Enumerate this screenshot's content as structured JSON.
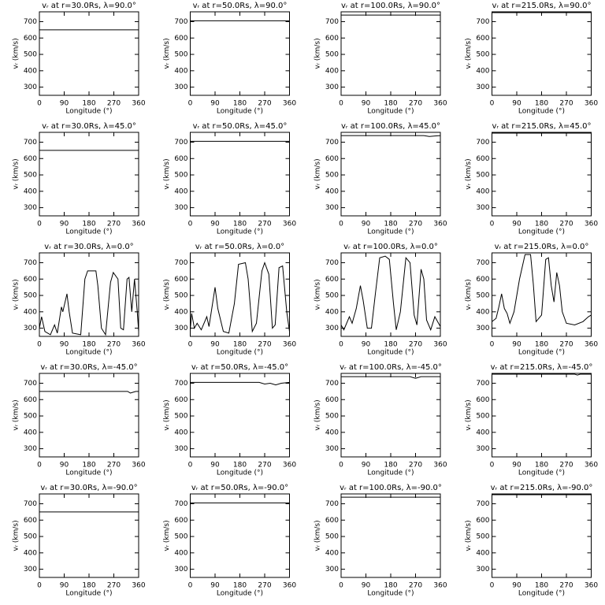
{
  "chart_data": [
    {
      "type": "line",
      "title": "vᵣ at r=30.0Rs, λ=90.0°",
      "xlabel": "Longitude (°)",
      "ylabel": "vᵣ (km/s)",
      "x": [
        0,
        360
      ],
      "values": [
        650,
        650
      ],
      "color": "#000000",
      "xlim": [
        0,
        360
      ],
      "ylim": [
        250,
        760
      ],
      "xticks": [
        0,
        90,
        180,
        270,
        360
      ],
      "yticks": [
        300,
        400,
        500,
        600,
        700
      ]
    },
    {
      "type": "line",
      "title": "vᵣ at r=50.0Rs, λ=90.0°",
      "xlabel": "Longitude (°)",
      "ylabel": "vᵣ (km/s)",
      "x": [
        0,
        360
      ],
      "values": [
        705,
        705
      ],
      "color": "#000000",
      "xlim": [
        0,
        360
      ],
      "ylim": [
        250,
        760
      ],
      "xticks": [
        0,
        90,
        180,
        270,
        360
      ],
      "yticks": [
        300,
        400,
        500,
        600,
        700
      ]
    },
    {
      "type": "line",
      "title": "vᵣ at r=100.0Rs, λ=90.0°",
      "xlabel": "Longitude (°)",
      "ylabel": "vᵣ (km/s)",
      "x": [
        0,
        360
      ],
      "values": [
        740,
        740
      ],
      "color": "#000000",
      "xlim": [
        0,
        360
      ],
      "ylim": [
        250,
        760
      ],
      "xticks": [
        0,
        90,
        180,
        270,
        360
      ],
      "yticks": [
        300,
        400,
        500,
        600,
        700
      ]
    },
    {
      "type": "line",
      "title": "vᵣ at r=215.0Rs, λ=90.0°",
      "xlabel": "Longitude (°)",
      "ylabel": "vᵣ (km/s)",
      "x": [
        0,
        360
      ],
      "values": [
        755,
        755
      ],
      "color": "#000000",
      "xlim": [
        0,
        360
      ],
      "ylim": [
        250,
        760
      ],
      "xticks": [
        0,
        90,
        180,
        270,
        360
      ],
      "yticks": [
        300,
        400,
        500,
        600,
        700
      ]
    },
    {
      "type": "line",
      "title": "vᵣ at r=30.0Rs, λ=45.0°",
      "xlabel": "Longitude (°)",
      "ylabel": "vᵣ (km/s)",
      "x": [
        0,
        360
      ],
      "values": [
        650,
        650
      ],
      "color": "#000000",
      "xlim": [
        0,
        360
      ],
      "ylim": [
        250,
        760
      ],
      "xticks": [
        0,
        90,
        180,
        270,
        360
      ],
      "yticks": [
        300,
        400,
        500,
        600,
        700
      ]
    },
    {
      "type": "line",
      "title": "vᵣ at r=50.0Rs, λ=45.0°",
      "xlabel": "Longitude (°)",
      "ylabel": "vᵣ (km/s)",
      "x": [
        0,
        360
      ],
      "values": [
        705,
        705
      ],
      "color": "#000000",
      "xlim": [
        0,
        360
      ],
      "ylim": [
        250,
        760
      ],
      "xticks": [
        0,
        90,
        180,
        270,
        360
      ],
      "yticks": [
        300,
        400,
        500,
        600,
        700
      ]
    },
    {
      "type": "line",
      "title": "vᵣ at r=100.0Rs, λ=45.0°",
      "xlabel": "Longitude (°)",
      "ylabel": "vᵣ (km/s)",
      "x": [
        0,
        300,
        320,
        340,
        360
      ],
      "values": [
        740,
        740,
        735,
        738,
        740
      ],
      "color": "#000000",
      "xlim": [
        0,
        360
      ],
      "ylim": [
        250,
        760
      ],
      "xticks": [
        0,
        90,
        180,
        270,
        360
      ],
      "yticks": [
        300,
        400,
        500,
        600,
        700
      ]
    },
    {
      "type": "line",
      "title": "vᵣ at r=215.0Rs, λ=45.0°",
      "xlabel": "Longitude (°)",
      "ylabel": "vᵣ (km/s)",
      "x": [
        0,
        360
      ],
      "values": [
        755,
        755
      ],
      "color": "#000000",
      "xlim": [
        0,
        360
      ],
      "ylim": [
        250,
        760
      ],
      "xticks": [
        0,
        90,
        180,
        270,
        360
      ],
      "yticks": [
        300,
        400,
        500,
        600,
        700
      ]
    },
    {
      "type": "line",
      "title": "vᵣ at r=30.0Rs, λ=0.0°",
      "xlabel": "Longitude (°)",
      "ylabel": "vᵣ (km/s)",
      "x": [
        0,
        8,
        20,
        40,
        55,
        65,
        80,
        85,
        100,
        108,
        120,
        150,
        165,
        175,
        205,
        212,
        225,
        240,
        258,
        268,
        285,
        295,
        305,
        318,
        325,
        335,
        345,
        355,
        360
      ],
      "values": [
        300,
        370,
        280,
        260,
        320,
        270,
        430,
        400,
        510,
        400,
        270,
        260,
        600,
        650,
        650,
        560,
        300,
        260,
        580,
        640,
        600,
        300,
        290,
        600,
        610,
        400,
        600,
        400,
        280
      ],
      "color": "#000000",
      "xlim": [
        0,
        360
      ],
      "ylim": [
        250,
        760
      ],
      "xticks": [
        0,
        90,
        180,
        270,
        360
      ],
      "yticks": [
        300,
        400,
        500,
        600,
        700
      ]
    },
    {
      "type": "line",
      "title": "vᵣ at r=50.0Rs, λ=0.0°",
      "xlabel": "Longitude (°)",
      "ylabel": "vᵣ (km/s)",
      "x": [
        0,
        5,
        15,
        25,
        40,
        60,
        68,
        80,
        90,
        100,
        120,
        140,
        160,
        175,
        200,
        210,
        225,
        240,
        260,
        270,
        285,
        298,
        308,
        322,
        335,
        350,
        360
      ],
      "values": [
        290,
        390,
        300,
        330,
        290,
        370,
        310,
        440,
        550,
        420,
        280,
        270,
        450,
        690,
        700,
        600,
        280,
        330,
        650,
        700,
        630,
        300,
        320,
        670,
        680,
        400,
        280
      ],
      "color": "#000000",
      "xlim": [
        0,
        360
      ],
      "ylim": [
        250,
        760
      ],
      "xticks": [
        0,
        90,
        180,
        270,
        360
      ],
      "yticks": [
        300,
        400,
        500,
        600,
        700
      ]
    },
    {
      "type": "line",
      "title": "vᵣ at r=100.0Rs, λ=0.0°",
      "xlabel": "Longitude (°)",
      "ylabel": "vᵣ (km/s)",
      "x": [
        0,
        10,
        30,
        40,
        55,
        70,
        80,
        95,
        110,
        125,
        140,
        160,
        175,
        190,
        200,
        215,
        235,
        250,
        265,
        275,
        290,
        300,
        310,
        325,
        340,
        360
      ],
      "values": [
        320,
        290,
        370,
        330,
        420,
        560,
        470,
        300,
        300,
        520,
        730,
        740,
        720,
        450,
        290,
        400,
        730,
        700,
        380,
        320,
        660,
        600,
        350,
        290,
        370,
        310
      ],
      "color": "#000000",
      "xlim": [
        0,
        360
      ],
      "ylim": [
        250,
        760
      ],
      "xticks": [
        0,
        90,
        180,
        270,
        360
      ],
      "yticks": [
        300,
        400,
        500,
        600,
        700
      ]
    },
    {
      "type": "line",
      "title": "vᵣ at r=215.0Rs, λ=0.0°",
      "xlabel": "Longitude (°)",
      "ylabel": "vᵣ (km/s)",
      "x": [
        0,
        15,
        25,
        35,
        45,
        55,
        65,
        80,
        100,
        120,
        140,
        150,
        160,
        180,
        195,
        205,
        215,
        225,
        235,
        245,
        255,
        270,
        300,
        330,
        350,
        360
      ],
      "values": [
        340,
        360,
        430,
        510,
        420,
        390,
        330,
        400,
        600,
        750,
        750,
        570,
        340,
        380,
        720,
        730,
        560,
        460,
        640,
        560,
        400,
        330,
        320,
        340,
        370,
        380
      ],
      "color": "#000000",
      "xlim": [
        0,
        360
      ],
      "ylim": [
        250,
        760
      ],
      "xticks": [
        0,
        90,
        180,
        270,
        360
      ],
      "yticks": [
        300,
        400,
        500,
        600,
        700
      ]
    },
    {
      "type": "line",
      "title": "vᵣ at r=30.0Rs, λ=-45.0°",
      "xlabel": "Longitude (°)",
      "ylabel": "vᵣ (km/s)",
      "x": [
        0,
        320,
        330,
        340,
        350,
        360
      ],
      "values": [
        650,
        650,
        640,
        645,
        650,
        650
      ],
      "color": "#000000",
      "xlim": [
        0,
        360
      ],
      "ylim": [
        250,
        760
      ],
      "xticks": [
        0,
        90,
        180,
        270,
        360
      ],
      "yticks": [
        300,
        400,
        500,
        600,
        700
      ]
    },
    {
      "type": "line",
      "title": "vᵣ at r=50.0Rs, λ=-45.0°",
      "xlabel": "Longitude (°)",
      "ylabel": "vᵣ (km/s)",
      "x": [
        0,
        250,
        270,
        290,
        310,
        330,
        360
      ],
      "values": [
        705,
        705,
        695,
        700,
        690,
        700,
        705
      ],
      "color": "#000000",
      "xlim": [
        0,
        360
      ],
      "ylim": [
        250,
        760
      ],
      "xticks": [
        0,
        90,
        180,
        270,
        360
      ],
      "yticks": [
        300,
        400,
        500,
        600,
        700
      ]
    },
    {
      "type": "line",
      "title": "vᵣ at r=100.0Rs, λ=-45.0°",
      "xlabel": "Longitude (°)",
      "ylabel": "vᵣ (km/s)",
      "x": [
        0,
        250,
        270,
        290,
        360
      ],
      "values": [
        740,
        740,
        730,
        740,
        740
      ],
      "color": "#000000",
      "xlim": [
        0,
        360
      ],
      "ylim": [
        250,
        760
      ],
      "xticks": [
        0,
        90,
        180,
        270,
        360
      ],
      "yticks": [
        300,
        400,
        500,
        600,
        700
      ]
    },
    {
      "type": "line",
      "title": "vᵣ at r=215.0Rs, λ=-45.0°",
      "xlabel": "Longitude (°)",
      "ylabel": "vᵣ (km/s)",
      "x": [
        0,
        300,
        310,
        320,
        360
      ],
      "values": [
        755,
        755,
        750,
        755,
        755
      ],
      "color": "#000000",
      "xlim": [
        0,
        360
      ],
      "ylim": [
        250,
        760
      ],
      "xticks": [
        0,
        90,
        180,
        270,
        360
      ],
      "yticks": [
        300,
        400,
        500,
        600,
        700
      ]
    },
    {
      "type": "line",
      "title": "vᵣ at r=30.0Rs, λ=-90.0°",
      "xlabel": "Longitude (°)",
      "ylabel": "vᵣ (km/s)",
      "x": [
        0,
        360
      ],
      "values": [
        650,
        650
      ],
      "color": "#000000",
      "xlim": [
        0,
        360
      ],
      "ylim": [
        250,
        760
      ],
      "xticks": [
        0,
        90,
        180,
        270,
        360
      ],
      "yticks": [
        300,
        400,
        500,
        600,
        700
      ]
    },
    {
      "type": "line",
      "title": "vᵣ at r=50.0Rs, λ=-90.0°",
      "xlabel": "Longitude (°)",
      "ylabel": "vᵣ (km/s)",
      "x": [
        0,
        360
      ],
      "values": [
        705,
        705
      ],
      "color": "#000000",
      "xlim": [
        0,
        360
      ],
      "ylim": [
        250,
        760
      ],
      "xticks": [
        0,
        90,
        180,
        270,
        360
      ],
      "yticks": [
        300,
        400,
        500,
        600,
        700
      ]
    },
    {
      "type": "line",
      "title": "vᵣ at r=100.0Rs, λ=-90.0°",
      "xlabel": "Longitude (°)",
      "ylabel": "vᵣ (km/s)",
      "x": [
        0,
        360
      ],
      "values": [
        740,
        740
      ],
      "color": "#000000",
      "xlim": [
        0,
        360
      ],
      "ylim": [
        250,
        760
      ],
      "xticks": [
        0,
        90,
        180,
        270,
        360
      ],
      "yticks": [
        300,
        400,
        500,
        600,
        700
      ]
    },
    {
      "type": "line",
      "title": "vᵣ at r=215.0Rs, λ=-90.0°",
      "xlabel": "Longitude (°)",
      "ylabel": "vᵣ (km/s)",
      "x": [
        0,
        360
      ],
      "values": [
        755,
        755
      ],
      "color": "#000000",
      "xlim": [
        0,
        360
      ],
      "ylim": [
        250,
        760
      ],
      "xticks": [
        0,
        90,
        180,
        270,
        360
      ],
      "yticks": [
        300,
        400,
        500,
        600,
        700
      ]
    }
  ]
}
